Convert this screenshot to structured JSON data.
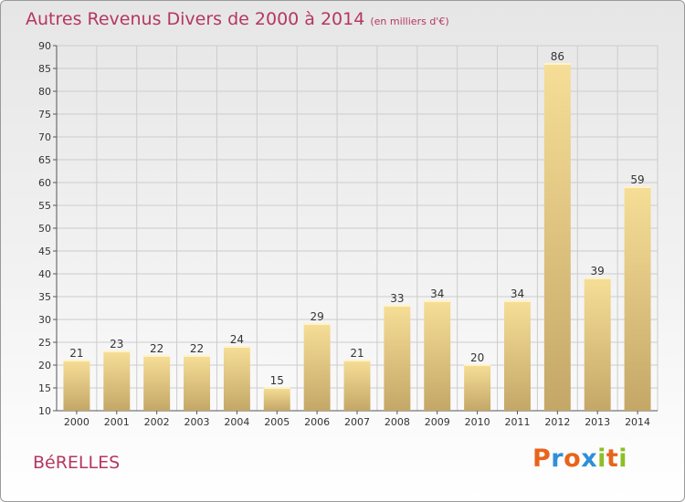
{
  "chart_data": {
    "type": "bar",
    "title": "Autres Revenus Divers de 2000 à 2014",
    "subtitle": "(en milliers d'€)",
    "categories": [
      "2000",
      "2001",
      "2002",
      "2003",
      "2004",
      "2005",
      "2006",
      "2007",
      "2008",
      "2009",
      "2010",
      "2011",
      "2012",
      "2013",
      "2014"
    ],
    "values": [
      21,
      23,
      22,
      22,
      24,
      15,
      29,
      21,
      33,
      34,
      20,
      34,
      86,
      39,
      59
    ],
    "ylim": [
      10,
      90
    ],
    "yticks": [
      10,
      15,
      20,
      25,
      30,
      35,
      40,
      45,
      50,
      55,
      60,
      65,
      70,
      75,
      80,
      85,
      90
    ],
    "grid": true,
    "bar_color_top": "#f6de97",
    "bar_color_bottom": "#c4a767",
    "grid_color": "#cccccc"
  },
  "location": "BéRELLES",
  "logo": {
    "letters": [
      "P",
      "r",
      "o",
      "x",
      "i",
      "t",
      "i"
    ],
    "colors": [
      "#e8641b",
      "#2f8fd8",
      "#e8641b",
      "#2f8fd8",
      "#8cbf26",
      "#e8641b",
      "#8cbf26"
    ]
  }
}
